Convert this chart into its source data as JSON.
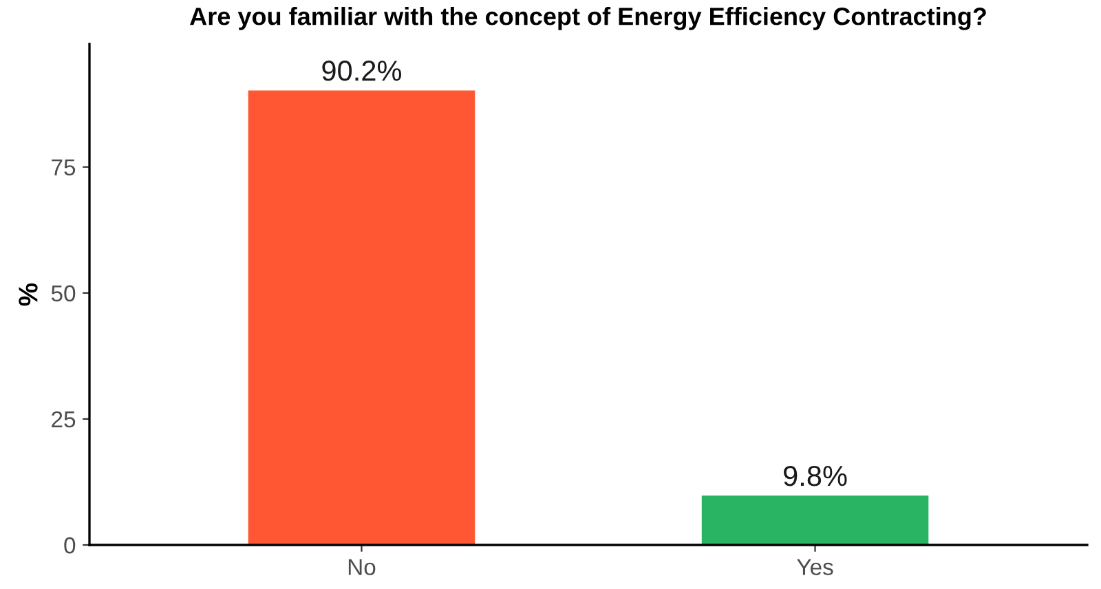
{
  "chart_data": {
    "type": "bar",
    "title": "Are you familiar with the concept of Energy Efficiency Contracting?",
    "ylabel": "%",
    "categories": [
      "No",
      "Yes"
    ],
    "values": [
      90.2,
      9.8
    ],
    "colors": [
      "#ff5733",
      "#28b463"
    ],
    "value_labels": [
      "90.2%",
      "9.8%"
    ],
    "ylim": [
      0,
      99.4
    ],
    "yticks": [
      0,
      25,
      50,
      75
    ],
    "grid": false,
    "legend": false
  }
}
